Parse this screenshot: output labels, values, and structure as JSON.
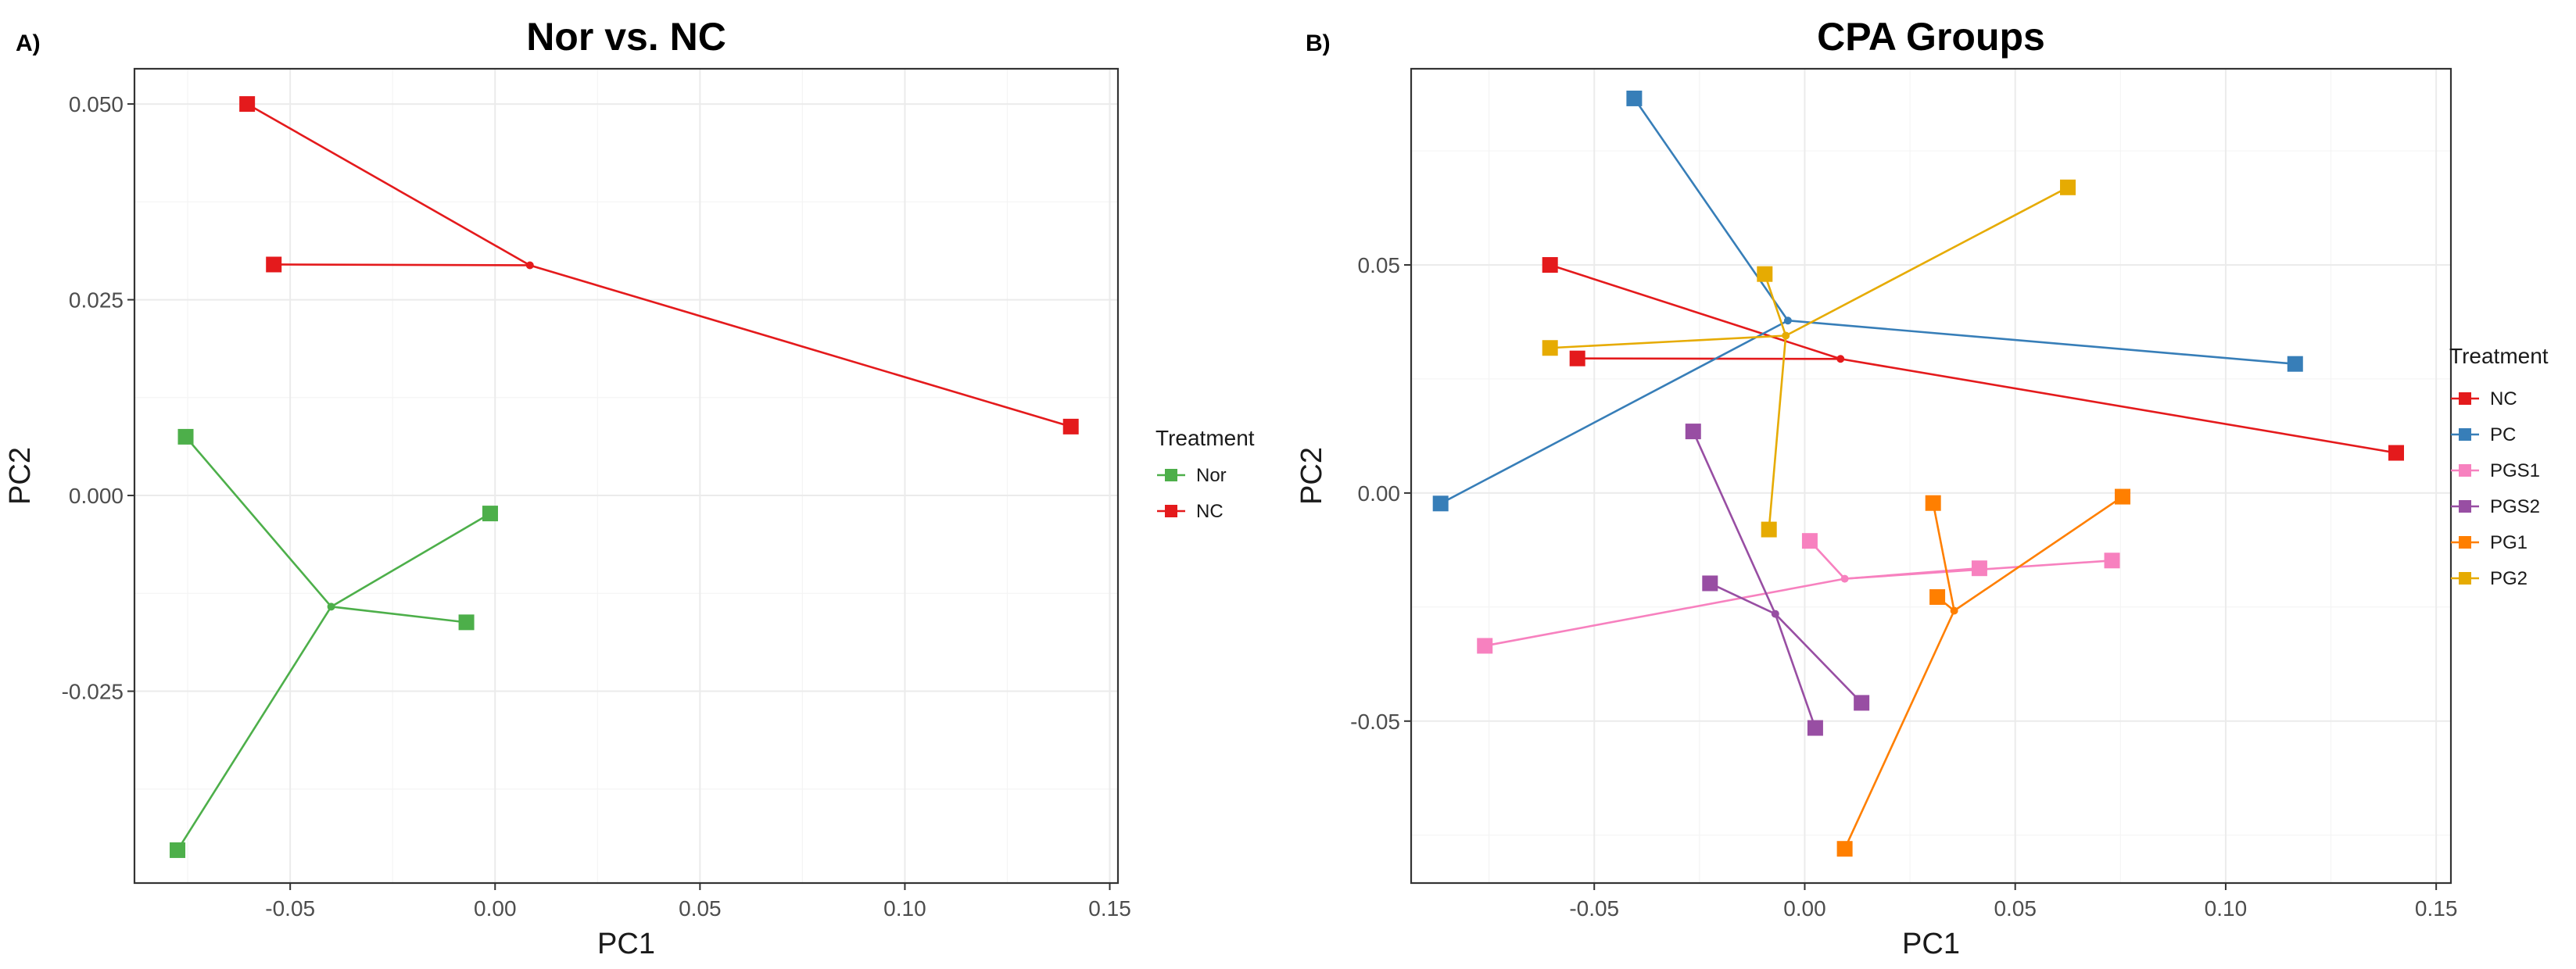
{
  "chart_data": [
    {
      "type": "scatter",
      "panel_label": "A)",
      "title": "Nor vs. NC",
      "xlabel": "PC1",
      "ylabel": "PC2",
      "xlim": [
        -0.088,
        0.152
      ],
      "ylim": [
        -0.0495,
        0.0545
      ],
      "xticks": [
        -0.05,
        0.0,
        0.05,
        0.1,
        0.15
      ],
      "xtick_labels": [
        "-0.05",
        "0.00",
        "0.05",
        "0.10",
        "0.15"
      ],
      "yticks": [
        -0.025,
        0.0,
        0.025,
        0.05
      ],
      "ytick_labels": [
        "-0.025",
        "0.000",
        "0.025",
        "0.050"
      ],
      "grid": true,
      "legend": {
        "title": "Treatment",
        "position": "right"
      },
      "series": [
        {
          "name": "Nor",
          "color": "#4daf4a",
          "centroid": [
            -0.04,
            -0.0142
          ],
          "points": [
            [
              -0.0755,
              0.0075
            ],
            [
              -0.0012,
              -0.0023
            ],
            [
              -0.007,
              -0.0162
            ],
            [
              -0.0775,
              -0.0453
            ]
          ]
        },
        {
          "name": "NC",
          "color": "#e41a1c",
          "centroid": [
            0.0085,
            0.0294
          ],
          "points": [
            [
              -0.0605,
              0.05
            ],
            [
              -0.054,
              0.0295
            ],
            [
              0.1405,
              0.0088
            ]
          ]
        }
      ]
    },
    {
      "type": "scatter",
      "panel_label": "B)",
      "title": "CPA Groups",
      "xlabel": "PC1",
      "ylabel": "PC2",
      "xlim": [
        -0.0935,
        0.1535
      ],
      "ylim": [
        -0.0855,
        0.093
      ],
      "xticks": [
        -0.05,
        0.0,
        0.05,
        0.1,
        0.15
      ],
      "xtick_labels": [
        "-0.05",
        "0.00",
        "0.05",
        "0.10",
        "0.15"
      ],
      "yticks": [
        -0.05,
        0.0,
        0.05
      ],
      "ytick_labels": [
        "-0.05",
        "0.00",
        "0.05"
      ],
      "grid": true,
      "legend": {
        "title": "Treatment",
        "position": "right"
      },
      "series": [
        {
          "name": "NC",
          "color": "#e41a1c",
          "centroid": [
            0.0085,
            0.0294
          ],
          "points": [
            [
              -0.0605,
              0.05
            ],
            [
              -0.054,
              0.0295
            ],
            [
              0.1405,
              0.0088
            ]
          ]
        },
        {
          "name": "PC",
          "color": "#377eb8",
          "centroid": [
            -0.004,
            0.0378
          ],
          "points": [
            [
              -0.0405,
              0.0865
            ],
            [
              0.1165,
              0.0283
            ],
            [
              -0.0865,
              -0.0023
            ]
          ]
        },
        {
          "name": "PGS1",
          "color": "#f781bf",
          "centroid": [
            0.0095,
            -0.0188
          ],
          "points": [
            [
              0.0012,
              -0.0105
            ],
            [
              0.0415,
              -0.0165
            ],
            [
              0.073,
              -0.0148
            ],
            [
              -0.076,
              -0.0335
            ]
          ]
        },
        {
          "name": "PGS2",
          "color": "#984ea3",
          "centroid": [
            -0.007,
            -0.0265
          ],
          "points": [
            [
              -0.0265,
              0.0135
            ],
            [
              -0.0225,
              -0.0198
            ],
            [
              0.0135,
              -0.046
            ],
            [
              0.0025,
              -0.0515
            ]
          ]
        },
        {
          "name": "PG1",
          "color": "#ff7f00",
          "centroid": [
            0.0355,
            -0.0258
          ],
          "points": [
            [
              0.0305,
              -0.0022
            ],
            [
              0.0755,
              -0.0008
            ],
            [
              0.0315,
              -0.0228
            ],
            [
              0.0095,
              -0.078
            ]
          ]
        },
        {
          "name": "PG2",
          "color": "#e6ab02",
          "centroid": [
            -0.0045,
            0.0345
          ],
          "points": [
            [
              0.0625,
              0.067
            ],
            [
              -0.0095,
              0.048
            ],
            [
              -0.0605,
              0.0318
            ],
            [
              -0.0085,
              -0.008
            ]
          ]
        }
      ]
    }
  ]
}
